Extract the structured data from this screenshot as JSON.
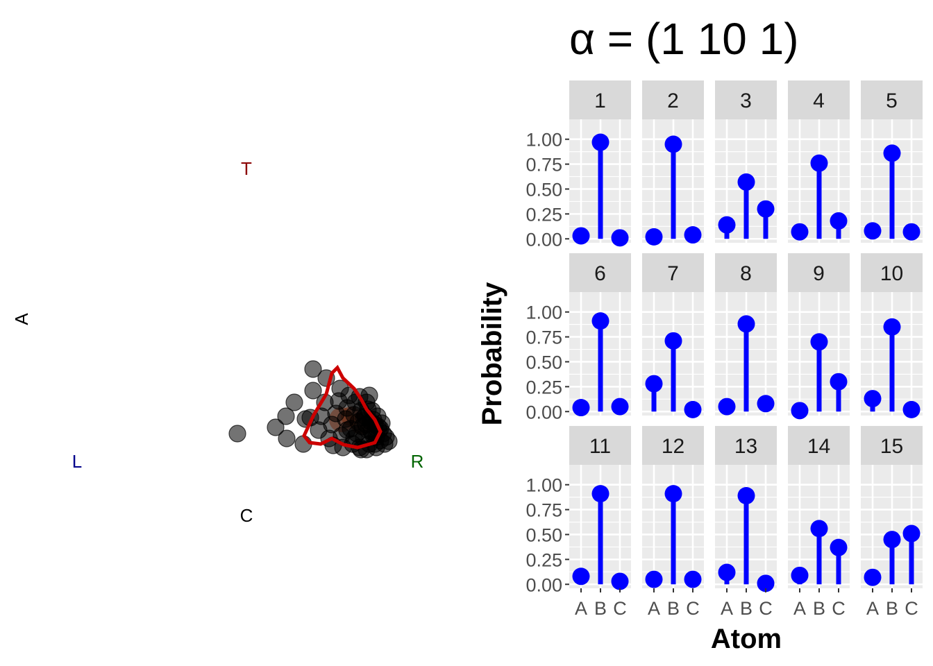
{
  "ternary": {
    "vertex_labels": {
      "top": {
        "text": "T",
        "color": "#8b0000"
      },
      "left": {
        "text": "L",
        "color": "#00008b"
      },
      "right": {
        "text": "R",
        "color": "#006400"
      },
      "bottom": {
        "text": "C",
        "color": "#000000"
      },
      "side": {
        "text": "A",
        "color": "#000000"
      }
    },
    "point_color": "#000000",
    "contour_color": "#cc0000",
    "density_fill_color": "#ff4500"
  },
  "chart_data": {
    "type": "lollipop",
    "title": "α = (1 10 1)",
    "xlabel": "Atom",
    "ylabel": "Probability",
    "categories": [
      "A",
      "B",
      "C"
    ],
    "ylim": [
      0,
      1
    ],
    "yticks": [
      "0.00",
      "0.25",
      "0.50",
      "0.75",
      "1.00"
    ],
    "color": "#0000ff",
    "facets": [
      {
        "label": "1",
        "values": [
          0.03,
          0.97,
          0.01
        ]
      },
      {
        "label": "2",
        "values": [
          0.02,
          0.95,
          0.04
        ]
      },
      {
        "label": "3",
        "values": [
          0.14,
          0.57,
          0.3
        ]
      },
      {
        "label": "4",
        "values": [
          0.07,
          0.76,
          0.18
        ]
      },
      {
        "label": "5",
        "values": [
          0.08,
          0.86,
          0.07
        ]
      },
      {
        "label": "6",
        "values": [
          0.04,
          0.91,
          0.05
        ]
      },
      {
        "label": "7",
        "values": [
          0.28,
          0.71,
          0.02
        ]
      },
      {
        "label": "8",
        "values": [
          0.05,
          0.88,
          0.08
        ]
      },
      {
        "label": "9",
        "values": [
          0.01,
          0.7,
          0.3
        ]
      },
      {
        "label": "10",
        "values": [
          0.13,
          0.85,
          0.02
        ]
      },
      {
        "label": "11",
        "values": [
          0.08,
          0.91,
          0.03
        ]
      },
      {
        "label": "12",
        "values": [
          0.05,
          0.91,
          0.05
        ]
      },
      {
        "label": "13",
        "values": [
          0.12,
          0.89,
          0.01
        ]
      },
      {
        "label": "14",
        "values": [
          0.09,
          0.56,
          0.37
        ]
      },
      {
        "label": "15",
        "values": [
          0.07,
          0.45,
          0.51
        ]
      }
    ]
  }
}
